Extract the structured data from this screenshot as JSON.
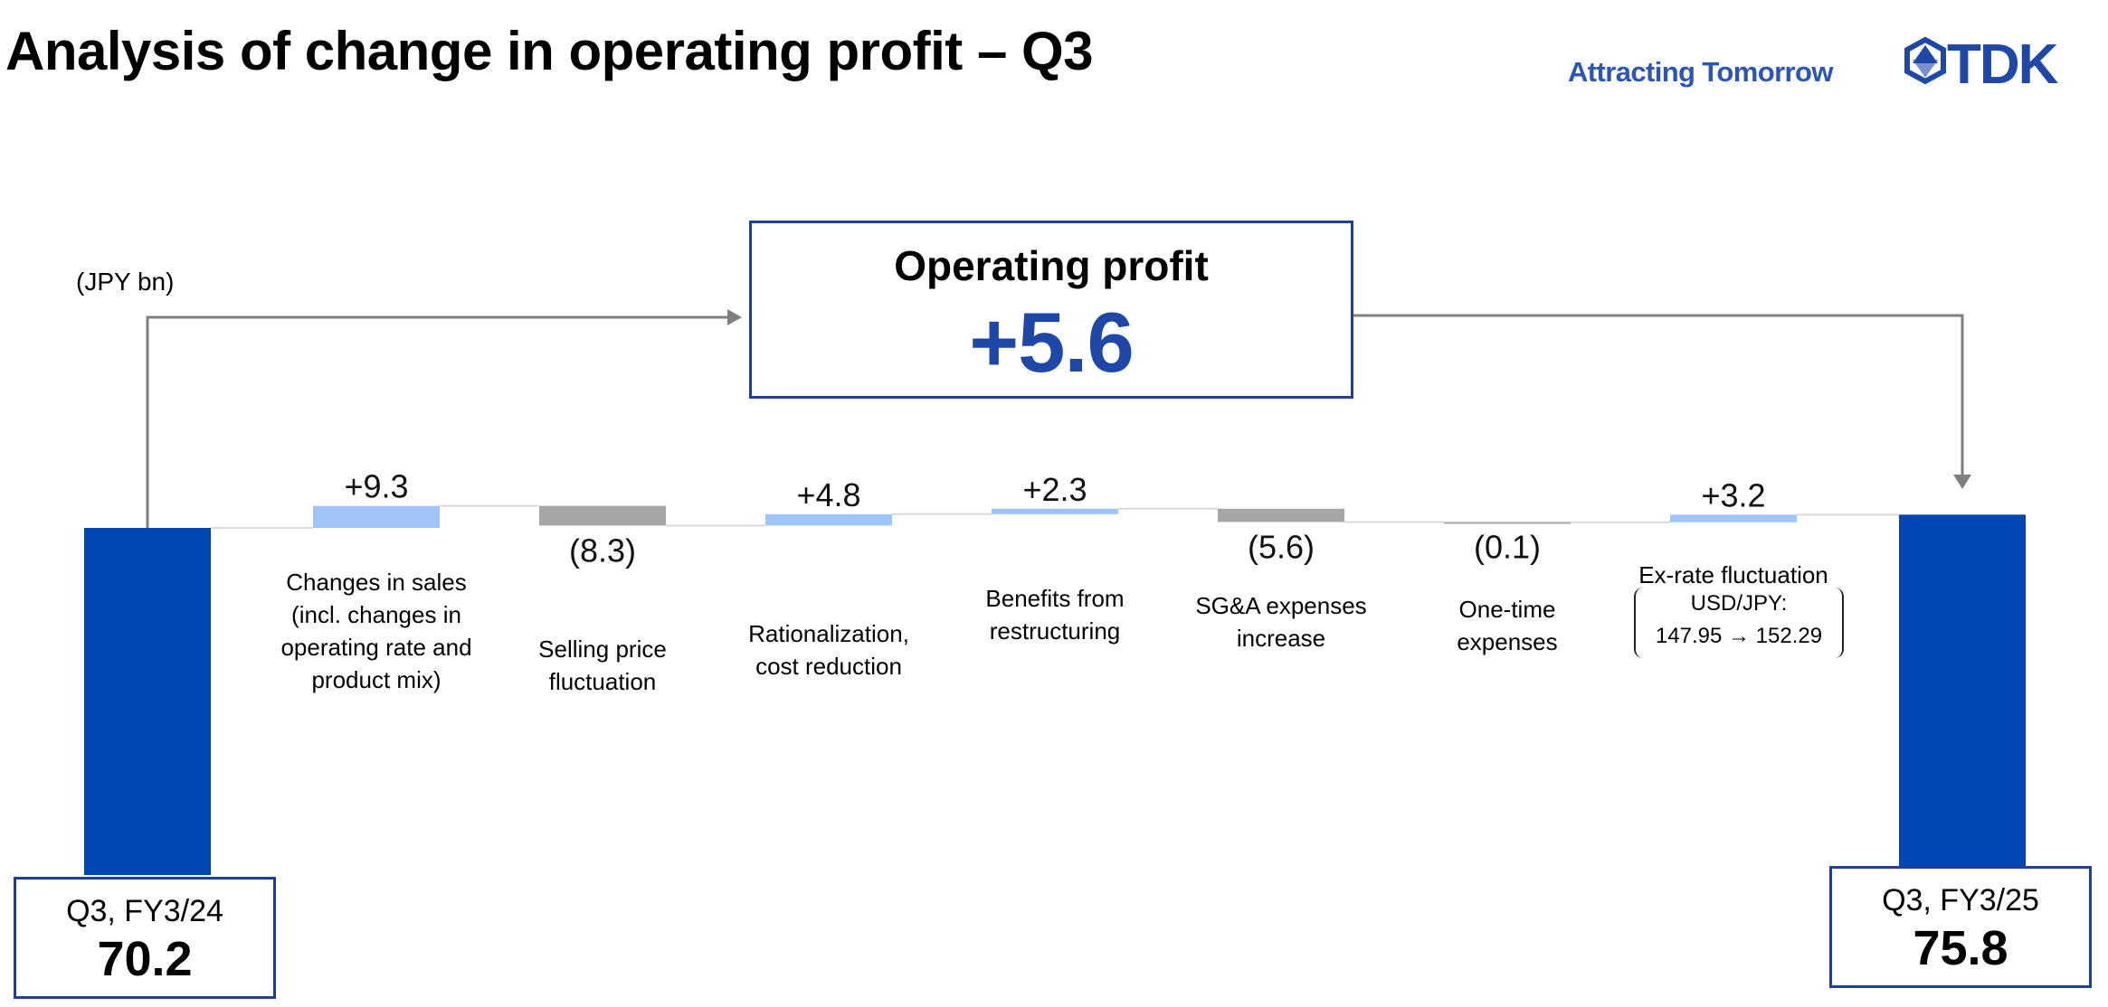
{
  "header": {
    "title": "Analysis of change in operating profit – Q3",
    "tagline": "Attracting Tomorrow",
    "logo_text": "TDK"
  },
  "unit_label": "(JPY bn)",
  "summary": {
    "label": "Operating profit",
    "value": "+5.6"
  },
  "fx_detail": {
    "line1": "USD/JPY:",
    "line2": "147.95 → 152.29"
  },
  "colors": {
    "total_bar": "#0047b3",
    "increase_bar": "#9fc5f8",
    "decrease_bar": "#a6a6a6",
    "brand_blue": "#1f47a8",
    "connector": "#d9d9d9",
    "arrow": "#7f7f7f"
  },
  "chart_data": {
    "type": "bar",
    "subtype": "waterfall",
    "unit": "JPY bn",
    "items": [
      {
        "kind": "total",
        "label": "Q3, FY3/24",
        "value": 70.2,
        "display": "70.2"
      },
      {
        "kind": "delta",
        "label_lines": [
          "Changes in sales",
          "(incl. changes in",
          "operating rate and",
          "product mix)"
        ],
        "value": 9.3,
        "display": "+9.3"
      },
      {
        "kind": "delta",
        "label_lines": [
          "Selling price",
          "fluctuation"
        ],
        "value": -8.3,
        "display": "(8.3)"
      },
      {
        "kind": "delta",
        "label_lines": [
          "Rationalization,",
          "cost reduction"
        ],
        "value": 4.8,
        "display": "+4.8"
      },
      {
        "kind": "delta",
        "label_lines": [
          "Benefits from",
          "restructuring"
        ],
        "value": 2.3,
        "display": "+2.3"
      },
      {
        "kind": "delta",
        "label_lines": [
          "SG&A expenses",
          "increase"
        ],
        "value": -5.6,
        "display": "(5.6)"
      },
      {
        "kind": "delta",
        "label_lines": [
          "One-time",
          "expenses"
        ],
        "value": -0.1,
        "display": "(0.1)"
      },
      {
        "kind": "delta",
        "label_lines": [
          "Ex-rate fluctuation"
        ],
        "value": 3.2,
        "display": "+3.2"
      },
      {
        "kind": "total",
        "label": "Q3, FY3/25",
        "value": 75.8,
        "display": "75.8"
      }
    ]
  }
}
